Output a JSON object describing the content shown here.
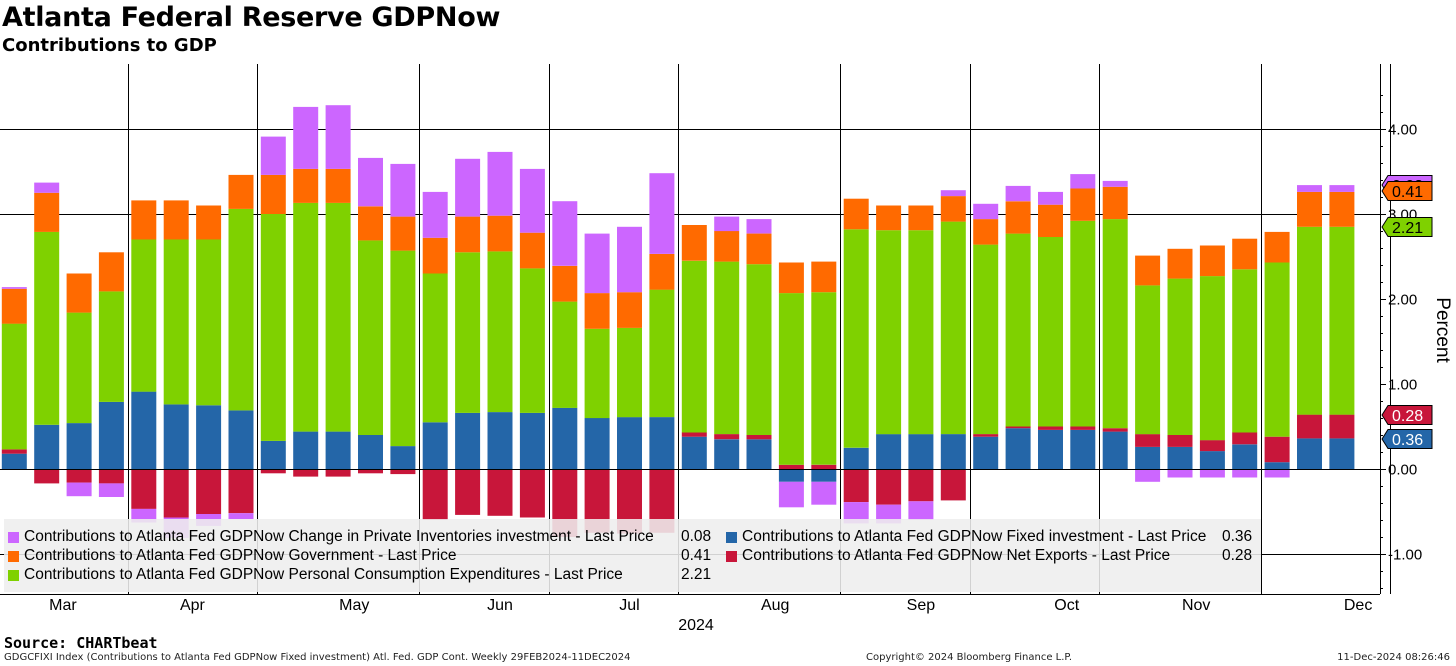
{
  "title": "Atlanta Federal Reserve GDPNow",
  "subtitle": "Contributions to GDP",
  "source": "Source: CHARTbeat",
  "footer": {
    "left": "GDGCFIXI Index (Contributions to Atlanta Fed GDPNow Fixed investment) Atl. Fed. GDP Cont.  Weekly 29FEB2024-11DEC2024",
    "center": "Copyright© 2024 Bloomberg Finance L.P.",
    "right": "11-Dec-2024 08:26:46"
  },
  "chart_data": {
    "type": "bar",
    "stacked": true,
    "ylabel": "Percent",
    "xlabel": "2024",
    "ylim": [
      -1.45,
      4.8
    ],
    "yticks": [
      -1,
      0,
      1,
      2,
      3,
      4
    ],
    "ytick_labels": [
      "-1.00",
      "0.00",
      "1.00",
      "2.00",
      "3.00",
      "4.00"
    ],
    "month_labels": [
      "Mar",
      "Apr",
      "May",
      "Jun",
      "Jul",
      "Aug",
      "Sep",
      "Oct",
      "Nov",
      "Dec"
    ],
    "month_label_after_bar": [
      1.5,
      5.5,
      10.5,
      15,
      19,
      23.5,
      28,
      32.5,
      36.5,
      41.5
    ],
    "month_separators_after_bar": [
      3.5,
      7.5,
      12.5,
      16.5,
      20.5,
      25.5,
      29.5,
      33.5,
      38.5,
      42.5
    ],
    "gridline_y": [
      4,
      3,
      -1
    ],
    "legend_position": "bottom-left",
    "series": [
      {
        "key": "fixed",
        "name": "Contributions to Atlanta Fed GDPNow Fixed investment - Last Price",
        "last": "0.36",
        "color": "#2466a8",
        "values": [
          0.18,
          0.52,
          0.54,
          0.79,
          0.91,
          0.76,
          0.75,
          0.69,
          0.33,
          0.44,
          0.44,
          0.4,
          0.27,
          0.55,
          0.66,
          0.67,
          0.66,
          0.72,
          0.6,
          0.61,
          0.61,
          0.38,
          0.35,
          0.35,
          -0.15,
          -0.15,
          0.25,
          0.41,
          0.41,
          0.41,
          0.38,
          0.48,
          0.46,
          0.46,
          0.44,
          0.26,
          0.26,
          0.21,
          0.29,
          0.08,
          0.36,
          0.36
        ]
      },
      {
        "key": "netex",
        "name": "Contributions to Atlanta Fed GDPNow Net Exports - Last Price",
        "last": "0.28",
        "color": "#c8163a",
        "values": [
          0.05,
          -0.17,
          -0.16,
          -0.17,
          -0.47,
          -0.57,
          -0.53,
          -0.52,
          -0.05,
          -0.09,
          -0.09,
          -0.05,
          -0.06,
          -0.6,
          -0.54,
          -0.55,
          -0.57,
          -0.8,
          -0.75,
          -0.76,
          -0.75,
          0.05,
          0.06,
          0.05,
          0.05,
          0.05,
          -0.39,
          -0.42,
          -0.38,
          -0.37,
          0.03,
          0.02,
          0.04,
          0.04,
          0.04,
          0.15,
          0.14,
          0.13,
          0.14,
          0.3,
          0.28,
          0.28
        ]
      },
      {
        "key": "pce",
        "name": "Contributions to Atlanta Fed GDPNow Personal Consumption Expenditures - Last Price",
        "last": "2.21",
        "color": "#7fd100",
        "values": [
          1.48,
          2.27,
          1.3,
          1.3,
          1.79,
          1.94,
          1.95,
          2.37,
          2.67,
          2.69,
          2.69,
          2.29,
          2.3,
          1.75,
          1.89,
          1.89,
          1.7,
          1.25,
          1.05,
          1.05,
          1.5,
          2.02,
          2.03,
          2.01,
          2.02,
          2.03,
          2.57,
          2.4,
          2.4,
          2.5,
          2.23,
          2.27,
          2.23,
          2.42,
          2.46,
          1.75,
          1.84,
          1.93,
          1.92,
          2.05,
          2.21,
          2.21
        ]
      },
      {
        "key": "gov",
        "name": "Contributions to Atlanta Fed GDPNow Government - Last Price",
        "last": "0.41",
        "color": "#ff6a00",
        "values": [
          0.41,
          0.46,
          0.46,
          0.46,
          0.46,
          0.46,
          0.4,
          0.4,
          0.46,
          0.4,
          0.4,
          0.4,
          0.4,
          0.42,
          0.42,
          0.42,
          0.42,
          0.42,
          0.42,
          0.42,
          0.42,
          0.42,
          0.36,
          0.36,
          0.36,
          0.36,
          0.36,
          0.29,
          0.29,
          0.3,
          0.3,
          0.38,
          0.38,
          0.38,
          0.38,
          0.35,
          0.35,
          0.36,
          0.36,
          0.36,
          0.41,
          0.41
        ]
      },
      {
        "key": "inv",
        "name": "Contributions to Atlanta Fed GDPNow Change in Private Inventories investment - Last Price",
        "last": "0.08",
        "color": "#cc66ff",
        "values": [
          0.02,
          0.12,
          -0.16,
          -0.16,
          -0.16,
          -0.24,
          -0.14,
          -0.07,
          0.45,
          0.73,
          0.75,
          0.57,
          0.62,
          0.54,
          0.68,
          0.75,
          0.75,
          0.76,
          0.7,
          0.77,
          0.95,
          0.0,
          0.17,
          0.17,
          -0.3,
          -0.27,
          -0.25,
          -0.22,
          -0.22,
          0.07,
          0.18,
          0.18,
          0.15,
          0.17,
          0.07,
          -0.15,
          -0.1,
          -0.1,
          -0.1,
          -0.1,
          0.08,
          0.08
        ]
      }
    ]
  },
  "legend": {
    "rows": [
      {
        "left": {
          "key": "inv",
          "label": "Contributions to Atlanta Fed GDPNow Change in Private Inventories investment - Last Price",
          "value": "0.08",
          "color": "#cc66ff"
        },
        "right": {
          "key": "fixed",
          "label": "Contributions to Atlanta Fed GDPNow Fixed investment - Last Price",
          "value": "0.36",
          "color": "#2466a8"
        }
      },
      {
        "left": {
          "key": "gov",
          "label": "Contributions to Atlanta Fed GDPNow Government - Last Price",
          "value": "0.41",
          "color": "#ff6a00"
        },
        "right": {
          "key": "netex",
          "label": "Contributions to Atlanta Fed GDPNow Net Exports - Last Price",
          "value": "0.28",
          "color": "#c8163a"
        }
      },
      {
        "left": {
          "key": "pce",
          "label": "Contributions to Atlanta Fed GDPNow Personal Consumption Expenditures - Last Price",
          "value": "2.21",
          "color": "#7fd100"
        }
      }
    ]
  },
  "last_value_tags": [
    {
      "key": "inv",
      "value": "0.08",
      "color": "#cc66ff"
    },
    {
      "key": "gov",
      "value": "0.41",
      "color": "#ff6a00"
    },
    {
      "key": "pce",
      "value": "2.21",
      "color": "#7fd100"
    },
    {
      "key": "netex",
      "value": "0.28",
      "color": "#c8163a"
    },
    {
      "key": "fixed",
      "value": "0.36",
      "color": "#2466a8"
    }
  ]
}
